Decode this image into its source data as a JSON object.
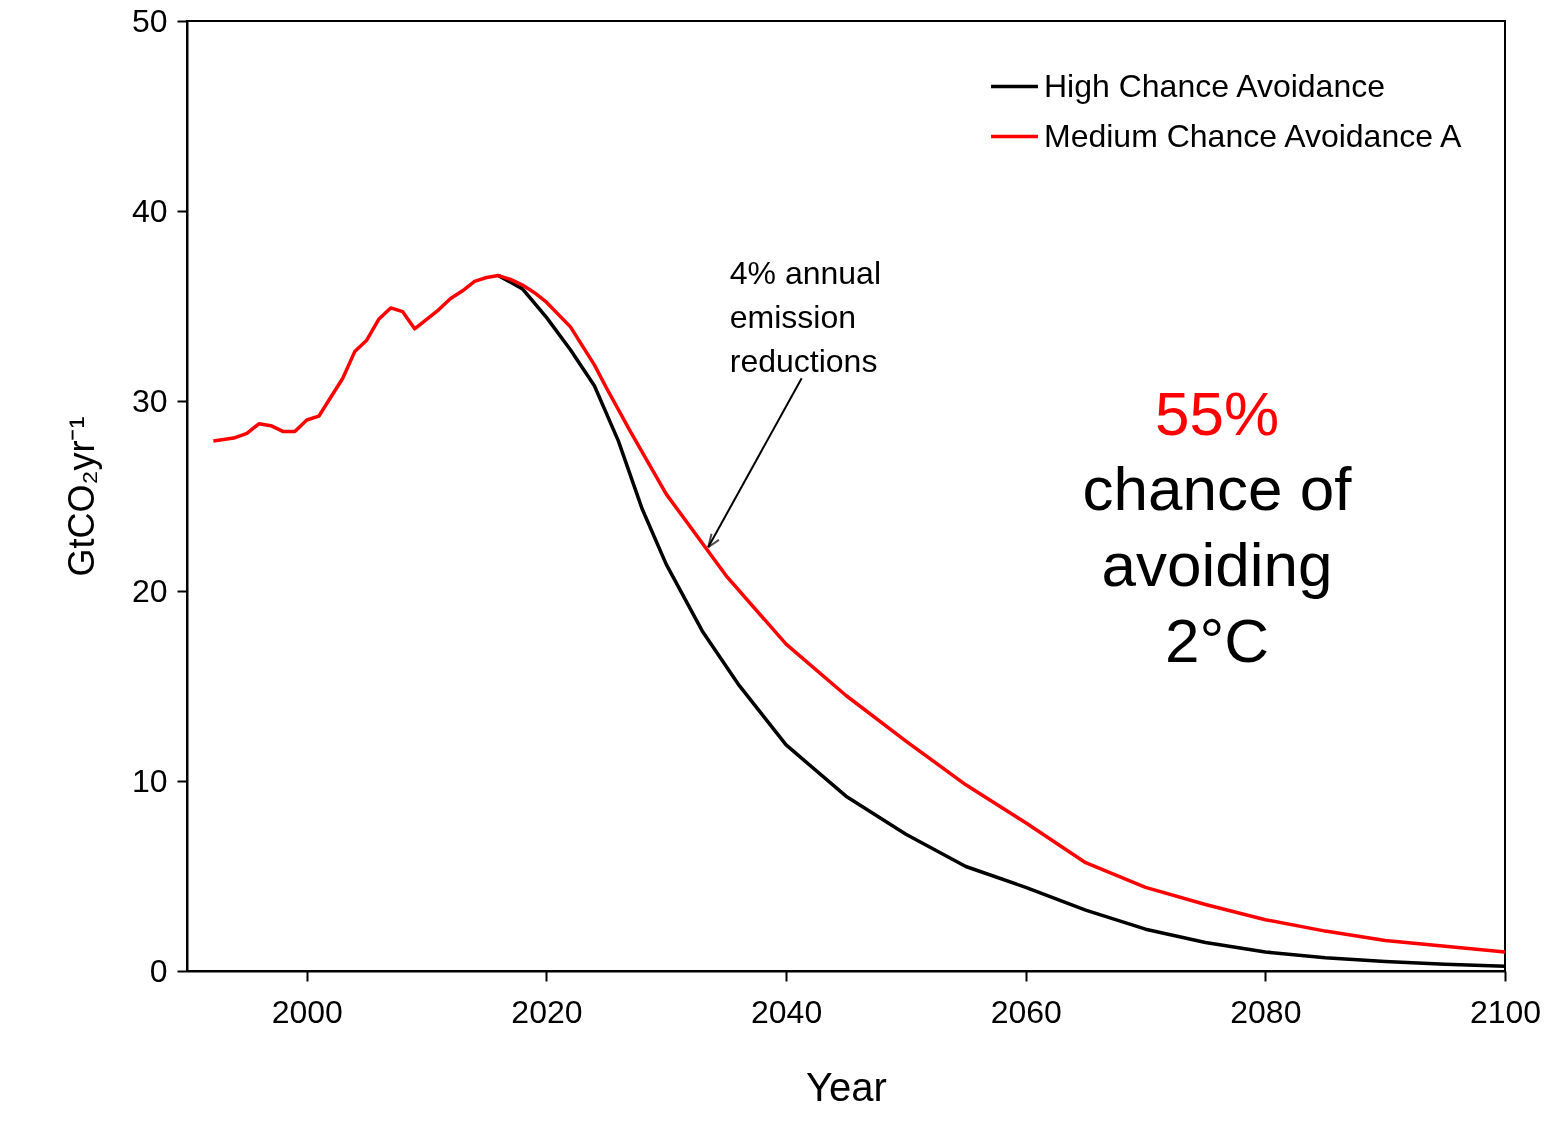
{
  "chart_data": {
    "type": "line",
    "xlabel": "Year",
    "ylabel": "GtCO₂yr⁻¹",
    "xlim": [
      1990,
      2100
    ],
    "xticks": [
      2000,
      2020,
      2040,
      2060,
      2080,
      2100
    ],
    "ylim": [
      0,
      50
    ],
    "yticks": [
      0,
      10,
      20,
      30,
      40,
      50
    ],
    "grid": false,
    "legend": "top right",
    "marker": "none",
    "line_style": "solid",
    "series": [
      {
        "name": "High Chance Avoidance",
        "color": "#000000",
        "x": [
          2016,
          2018,
          2020,
          2022,
          2024,
          2026,
          2028,
          2030,
          2033,
          2036,
          2040,
          2045,
          2050,
          2055,
          2060,
          2065,
          2070,
          2075,
          2080,
          2085,
          2090,
          2095,
          2100
        ],
        "values": [
          36.6,
          35.9,
          34.4,
          32.7,
          30.8,
          27.9,
          24.3,
          21.4,
          17.9,
          15.1,
          11.9,
          9.2,
          7.2,
          5.5,
          4.4,
          3.2,
          2.2,
          1.5,
          1.0,
          0.7,
          0.5,
          0.35,
          0.25
        ]
      },
      {
        "name": "Medium Chance Avoidance A",
        "color": "#ff0000",
        "x": [
          1992.2,
          1993.9,
          1995,
          1996,
          1997,
          1998,
          1999,
          2000,
          2001,
          2002,
          2003,
          2004,
          2005,
          2006,
          2007,
          2008,
          2009,
          2010,
          2011,
          2012,
          2013,
          2014,
          2015,
          2016,
          2017,
          2018,
          2019,
          2020,
          2022,
          2023,
          2024,
          2025,
          2027,
          2030,
          2035,
          2040,
          2045,
          2050,
          2055,
          2060,
          2065,
          2070,
          2075,
          2080,
          2085,
          2090,
          2095,
          2100
        ],
        "values": [
          27.9,
          28.05,
          28.3,
          28.8,
          28.7,
          28.4,
          28.4,
          29.0,
          29.2,
          30.2,
          31.2,
          32.6,
          33.2,
          34.3,
          34.9,
          34.7,
          33.8,
          34.3,
          34.8,
          35.4,
          35.8,
          36.3,
          36.5,
          36.6,
          36.4,
          36.1,
          35.7,
          35.2,
          33.9,
          32.9,
          31.9,
          30.7,
          28.4,
          25.1,
          20.8,
          17.2,
          14.5,
          12.1,
          9.8,
          7.8,
          5.7,
          4.4,
          3.5,
          2.7,
          2.1,
          1.6,
          1.3,
          1.0
        ]
      }
    ],
    "annotations": [
      {
        "text": "4% annual\nemission\nreductions",
        "x": 2033.5,
        "y": 22.3
      },
      "55%",
      "chance of\navoiding\n2°C"
    ]
  }
}
